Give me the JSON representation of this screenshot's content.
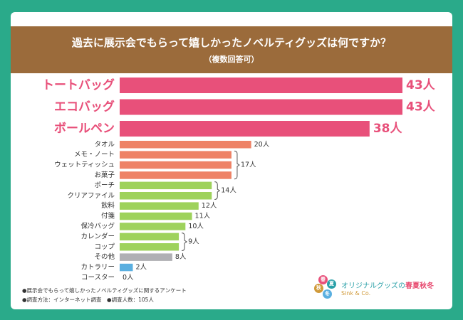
{
  "banner": {
    "title": "過去に展示会でもらって嬉しかったノベルティグッズは何ですか？",
    "subtitle": "（複数回答可）"
  },
  "colors": {
    "background": "#2aaa8a",
    "banner": "#9b6b3b",
    "top": "#e8507a",
    "orange": "#ee8266",
    "green": "#9ed25c",
    "gray": "#b0b0b4",
    "blue": "#5aafe0"
  },
  "chart_data": {
    "type": "bar",
    "orientation": "horizontal",
    "title": "過去に展示会でもらって嬉しかったノベルティグッズは何ですか？",
    "subtitle": "（複数回答可）",
    "unit": "人",
    "xlim": [
      0,
      43
    ],
    "categories": [
      "トートバッグ",
      "エコバッグ",
      "ボールペン",
      "タオル",
      "メモ・ノート",
      "ウェットティッシュ",
      "お菓子",
      "ポーチ",
      "クリアファイル",
      "飲料",
      "付箋",
      "保冷バッグ",
      "カレンダー",
      "コップ",
      "その他",
      "カトラリー",
      "コースター"
    ],
    "values": [
      43,
      43,
      38,
      20,
      17,
      17,
      17,
      14,
      14,
      12,
      11,
      10,
      9,
      9,
      8,
      2,
      0
    ],
    "value_labels": [
      "43人",
      "43人",
      "38人",
      "20人",
      "",
      "",
      "",
      "",
      "",
      "12人",
      "11人",
      "10人",
      "",
      "",
      "8人",
      "2人",
      "0人"
    ],
    "group_labels": [
      {
        "label": "17人",
        "from": 4,
        "to": 6
      },
      {
        "label": "14人",
        "from": 7,
        "to": 8
      },
      {
        "label": "9人",
        "from": 12,
        "to": 13
      }
    ],
    "color_groups": [
      "top",
      "top",
      "top",
      "orange",
      "orange",
      "orange",
      "orange",
      "green",
      "green",
      "green",
      "green",
      "green",
      "green",
      "green",
      "gray",
      "blue",
      "blue"
    ]
  },
  "footnotes": [
    "●展示会でもらって嬉しかったノベルティグッズに関するアンケート",
    "●調査方法：インターネット調査　●調査人数：105人"
  ],
  "brand": {
    "seals": [
      "春",
      "夏",
      "秋",
      "冬"
    ],
    "name_prefix": "オリジナルグッズの",
    "name_seasons": "春夏秋冬",
    "sub": "Sink & Co."
  }
}
